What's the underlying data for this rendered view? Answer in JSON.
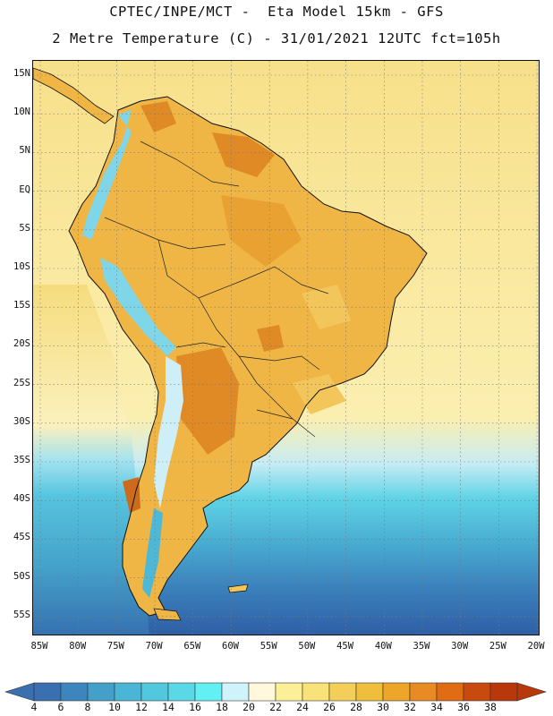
{
  "title": {
    "line1": "CPTEC/INPE/MCT -  Eta Model 15km - GFS",
    "line2": "2 Metre Temperature (C) - 31/01/2021 12UTC fct=105h"
  },
  "lat_labels": [
    "15N",
    "10N",
    "5N",
    "EQ",
    "5S",
    "10S",
    "15S",
    "20S",
    "25S",
    "30S",
    "35S",
    "40S",
    "45S",
    "50S",
    "55S"
  ],
  "lon_labels": [
    "85W",
    "80W",
    "75W",
    "70W",
    "65W",
    "60W",
    "55W",
    "50W",
    "45W",
    "40W",
    "35W",
    "30W",
    "25W",
    "20W"
  ],
  "colorbar": {
    "labels": [
      "4",
      "6",
      "8",
      "10",
      "12",
      "14",
      "16",
      "18",
      "20",
      "22",
      "24",
      "26",
      "28",
      "30",
      "32",
      "34",
      "36",
      "38"
    ],
    "colors": [
      "#3a6fb0",
      "#3d85bd",
      "#45a0c9",
      "#4bb5d6",
      "#52c8df",
      "#5ad8e6",
      "#62f0f4",
      "#cff3fb",
      "#fff8dc",
      "#fbf097",
      "#f9e27a",
      "#f3cf5a",
      "#efbf3c",
      "#eda52a",
      "#e88b22",
      "#e06c13",
      "#c94a0f",
      "#b8380c"
    ],
    "under_color": "#3a6fb0",
    "over_color": "#b8380c"
  },
  "map": {
    "ocean_palette": [
      "#2f5ea5",
      "#3d7ab8",
      "#47a3cb",
      "#55cbe0",
      "#a9e8f2",
      "#fbf3b8",
      "#f6df7f"
    ],
    "land_palette": [
      "#f3c65b",
      "#efb646",
      "#e9a232",
      "#e08a25",
      "#cc6b1b"
    ],
    "andes_palette": [
      "#cfeff8",
      "#7fd6e8",
      "#4fb8d6"
    ],
    "coastline_color": "#111111",
    "gridline_color": "#777777"
  }
}
